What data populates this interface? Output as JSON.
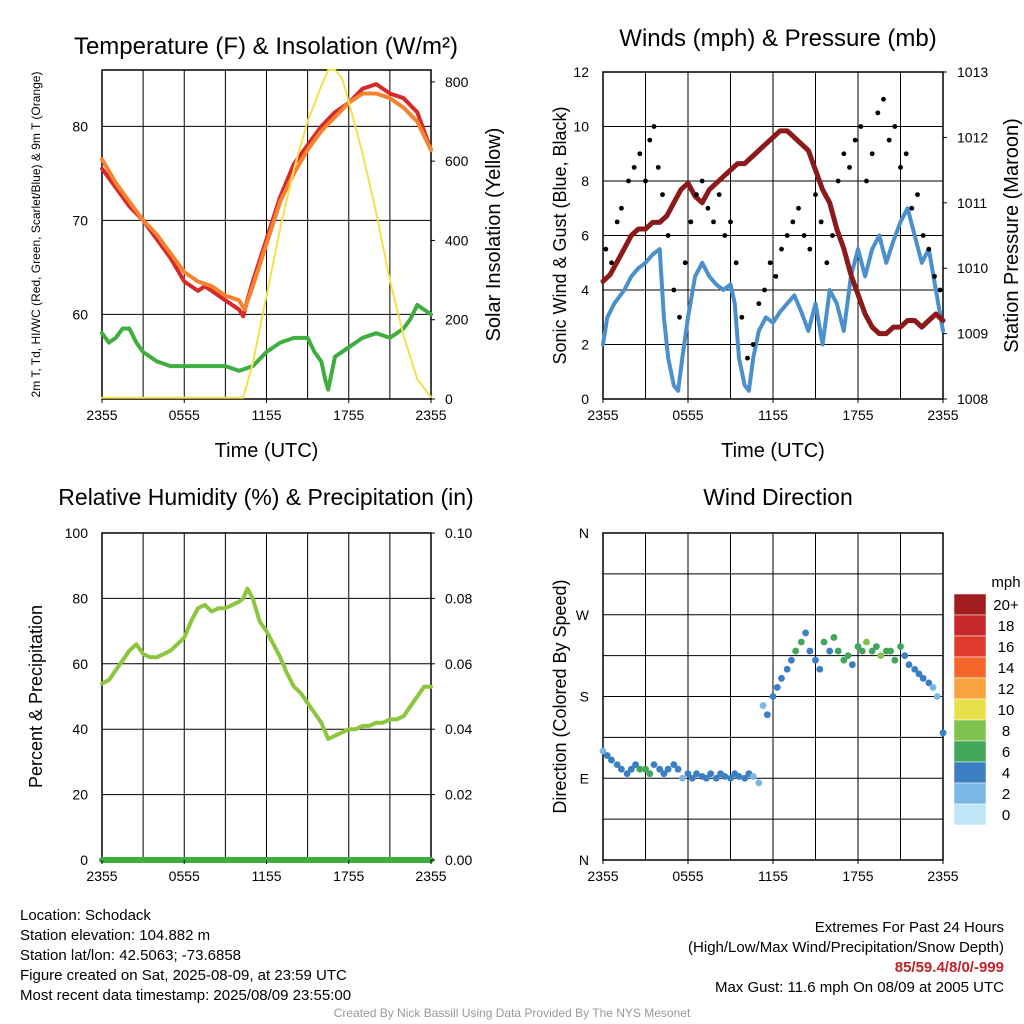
{
  "chart_data": [
    {
      "type": "line",
      "title": "Temperature (F) & Insolation (W/m²)",
      "xlabel": "Time (UTC)",
      "ylabel": "2m T, Td, HI/WC (Red, Green, Scarlet/Blue) & 9m T (Orange)",
      "ylabel_right": "Solar Insolation (Yellow)",
      "x_ticks": [
        "2355",
        "0555",
        "1155",
        "1755",
        "2355"
      ],
      "xlim": [
        0,
        24
      ],
      "ylim": [
        51,
        86
      ],
      "y_ticks": [
        60,
        70,
        80
      ],
      "ylim_right": [
        0,
        830
      ],
      "y_ticks_right": [
        0,
        200,
        400,
        600,
        800
      ],
      "grid": true,
      "series": [
        {
          "color": "#d7282a",
          "axis": "left",
          "x": [
            0,
            1,
            2,
            3,
            4,
            5,
            6,
            7,
            7.5,
            8,
            9,
            10,
            10.3,
            10.6,
            11,
            12,
            13,
            14,
            15,
            16,
            17,
            18,
            19,
            20,
            21,
            22,
            23,
            24
          ],
          "y": [
            75.5,
            73.5,
            71.5,
            70,
            68,
            66,
            63.5,
            62.5,
            63,
            62.5,
            61.5,
            60.5,
            59.8,
            61.5,
            63.5,
            68,
            72.5,
            76,
            78,
            80,
            81.5,
            82.5,
            84,
            84.5,
            83.5,
            83,
            81.5,
            77.5
          ]
        },
        {
          "color": "#f7832f",
          "axis": "left",
          "x": [
            0,
            1,
            2,
            3,
            4,
            5,
            6,
            7,
            8,
            9,
            10,
            10.4,
            11,
            12,
            13,
            14,
            15,
            16,
            17,
            18,
            19,
            20,
            21,
            22,
            23,
            24
          ],
          "y": [
            76.5,
            74,
            72,
            70,
            68.5,
            66.5,
            64.5,
            63.5,
            63,
            62,
            61.5,
            60.5,
            63,
            67.5,
            72,
            75,
            77.5,
            79.5,
            81,
            82.5,
            83.5,
            83.5,
            83,
            82,
            80.5,
            77.5
          ]
        },
        {
          "color": "#3fae3f",
          "axis": "left",
          "x": [
            0,
            0.5,
            1,
            1.5,
            2,
            2.5,
            3,
            3.5,
            4,
            5,
            6,
            7,
            8,
            9,
            10,
            11,
            12,
            13,
            14,
            15,
            15.5,
            16,
            16.3,
            16.5,
            17,
            18,
            19,
            20,
            21,
            22,
            22.5,
            23,
            24
          ],
          "y": [
            58,
            57,
            57.5,
            58.5,
            58.5,
            57,
            56,
            55.5,
            55,
            54.5,
            54.5,
            54.5,
            54.5,
            54.5,
            54,
            54.5,
            56,
            57,
            57.5,
            57.5,
            56,
            55,
            53,
            52,
            55.5,
            56.5,
            57.5,
            58,
            57.5,
            58.5,
            59.5,
            61,
            60
          ]
        },
        {
          "color": "#f6df4e",
          "axis": "right",
          "x": [
            0,
            9,
            10.3,
            11,
            12,
            13,
            14,
            15,
            16,
            16.5,
            17,
            17.5,
            18,
            19,
            20,
            21,
            22,
            23,
            24
          ],
          "y": [
            3,
            3,
            3,
            90,
            260,
            430,
            580,
            700,
            790,
            830,
            830,
            810,
            750,
            620,
            470,
            300,
            160,
            50,
            5
          ]
        }
      ]
    },
    {
      "type": "line",
      "title": "Winds (mph) & Pressure (mb)",
      "xlabel": "Time (UTC)",
      "ylabel": "Sonic Wind & Gust (Blue, Black)",
      "ylabel_right": "Station Pressure (Maroon)",
      "x_ticks": [
        "2355",
        "0555",
        "1155",
        "1755",
        "2355"
      ],
      "xlim": [
        0,
        24
      ],
      "ylim": [
        0,
        12
      ],
      "y_ticks": [
        0,
        2,
        4,
        6,
        8,
        10,
        12
      ],
      "ylim_right": [
        1008,
        1013
      ],
      "y_ticks_right": [
        1008,
        1009,
        1010,
        1011,
        1012,
        1013
      ],
      "grid": true,
      "series": [
        {
          "color": "#4a90cc",
          "axis": "left",
          "x": [
            0,
            0.3,
            0.8,
            1.5,
            2,
            2.5,
            3,
            3.5,
            4,
            4.3,
            4.6,
            5,
            5.3,
            5.6,
            6,
            6.5,
            7,
            7.5,
            8,
            8.5,
            9,
            9.3,
            9.6,
            10,
            10.3,
            10.6,
            11,
            11.5,
            12,
            12.5,
            13,
            13.5,
            14,
            14.5,
            15,
            15.5,
            16,
            16.5,
            17,
            17.5,
            18,
            18.5,
            19,
            19.5,
            20,
            20.5,
            21,
            21.5,
            22,
            22.5,
            23,
            23.5,
            24
          ],
          "y": [
            2,
            3,
            3.5,
            4,
            4.5,
            4.8,
            5,
            5.3,
            5.5,
            3,
            1.5,
            0.5,
            0.3,
            1.5,
            3,
            4.5,
            5,
            4.5,
            4.2,
            4,
            4.2,
            3.5,
            1.5,
            0.5,
            0.3,
            1.5,
            2.5,
            3,
            2.8,
            3.2,
            3.5,
            3.8,
            3.2,
            2.5,
            3.5,
            2,
            4,
            3.5,
            2.5,
            4.5,
            5.5,
            4.5,
            5.5,
            6,
            5,
            5.8,
            6.5,
            7,
            6,
            5,
            5.5,
            4,
            2.5
          ]
        },
        {
          "color": "#8b1a1a",
          "axis": "right",
          "x": [
            0,
            0.5,
            1,
            1.5,
            2,
            2.5,
            3,
            3.5,
            4,
            4.5,
            5,
            5.5,
            6,
            6.5,
            7,
            7.5,
            8,
            8.5,
            9,
            9.5,
            10,
            10.5,
            11,
            11.5,
            12,
            12.5,
            13,
            13.5,
            14,
            14.5,
            15,
            15.5,
            16,
            16.5,
            17,
            17.5,
            18,
            18.5,
            19,
            19.5,
            20,
            20.5,
            21,
            21.5,
            22,
            22.5,
            23,
            23.5,
            24
          ],
          "y": [
            1009.8,
            1009.9,
            1010.1,
            1010.3,
            1010.5,
            1010.6,
            1010.6,
            1010.7,
            1010.7,
            1010.8,
            1011,
            1011.2,
            1011.3,
            1011.1,
            1011,
            1011.2,
            1011.3,
            1011.4,
            1011.5,
            1011.6,
            1011.6,
            1011.7,
            1011.8,
            1011.9,
            1012,
            1012.1,
            1012.1,
            1012,
            1011.9,
            1011.8,
            1011.5,
            1011.2,
            1011,
            1010.6,
            1010.3,
            1009.9,
            1009.6,
            1009.3,
            1009.1,
            1009,
            1009,
            1009.1,
            1009.1,
            1009.2,
            1009.2,
            1009.1,
            1009.2,
            1009.3,
            1009.2
          ]
        },
        {
          "color": "#000000",
          "axis": "left",
          "style": "points",
          "x": [
            0.2,
            0.6,
            1,
            1.3,
            1.8,
            2.2,
            2.6,
            3,
            3.3,
            3.6,
            3.9,
            4.2,
            4.6,
            5,
            5.4,
            5.8,
            6.2,
            6.6,
            7,
            7.4,
            7.8,
            8.2,
            8.6,
            9,
            9.4,
            9.8,
            10.2,
            10.6,
            11,
            11.4,
            11.8,
            12.2,
            12.6,
            13,
            13.4,
            13.8,
            14.2,
            14.6,
            15,
            15.4,
            15.8,
            16.2,
            16.6,
            17,
            17.4,
            17.8,
            18.2,
            18.6,
            19,
            19.4,
            19.8,
            20.2,
            20.6,
            21,
            21.4,
            21.8,
            22.2,
            22.6,
            23,
            23.4,
            23.8
          ],
          "y": [
            5.5,
            5,
            6.5,
            7,
            8,
            8.5,
            9,
            8,
            9.5,
            10,
            8.5,
            7.5,
            6,
            4,
            3,
            5,
            6.5,
            7.5,
            8,
            7,
            6.5,
            7.5,
            6,
            6.5,
            5,
            3,
            1.5,
            2,
            3.5,
            4,
            5,
            4.5,
            5.5,
            6,
            6.5,
            7,
            6,
            5.5,
            7.5,
            6.5,
            5,
            6,
            8,
            9,
            8.5,
            9.5,
            10,
            8,
            9,
            10.5,
            11,
            9.5,
            10,
            8.5,
            9,
            7,
            7.5,
            6,
            5.5,
            4.5,
            4
          ]
        }
      ]
    },
    {
      "type": "line",
      "title": "Relative Humidity (%) & Precipitation (in)",
      "xlabel": "",
      "ylabel": "Percent & Precipitation",
      "x_ticks": [
        "2355",
        "0555",
        "1155",
        "1755",
        "2355"
      ],
      "xlim": [
        0,
        24
      ],
      "ylim": [
        0,
        100
      ],
      "y_ticks": [
        0,
        20,
        40,
        60,
        80,
        100
      ],
      "ylim_right": [
        0,
        0.1
      ],
      "y_ticks_right": [
        "0.00",
        "0.02",
        "0.04",
        "0.06",
        "0.08",
        "0.10"
      ],
      "grid": true,
      "series": [
        {
          "color": "#8cc63e",
          "axis": "left",
          "x": [
            0,
            0.5,
            1,
            1.5,
            2,
            2.5,
            3,
            3.5,
            4,
            4.5,
            5,
            5.5,
            6,
            6.5,
            7,
            7.5,
            8,
            8.5,
            9,
            9.5,
            10,
            10.3,
            10.6,
            11,
            11.5,
            12,
            12.5,
            13,
            13.5,
            14,
            14.5,
            15,
            15.5,
            16,
            16.5,
            17,
            17.5,
            18,
            18.5,
            19,
            19.5,
            20,
            20.5,
            21,
            21.5,
            22,
            22.5,
            23,
            23.5,
            24
          ],
          "y": [
            54,
            55,
            58,
            61,
            64,
            66,
            63,
            62,
            62,
            63,
            64,
            66,
            68,
            73,
            77,
            78,
            76,
            77,
            77,
            78,
            79,
            80,
            83,
            80,
            73,
            70,
            66,
            62,
            57,
            53,
            51,
            48,
            45,
            42,
            37,
            38,
            39,
            40,
            40,
            41,
            41,
            42,
            42,
            43,
            43,
            44,
            47,
            50,
            53,
            53
          ]
        },
        {
          "color": "#3fae3f",
          "axis": "right",
          "x": [
            0,
            24
          ],
          "y": [
            0,
            0
          ]
        }
      ]
    },
    {
      "type": "scatter",
      "title": "Wind Direction",
      "xlabel": "",
      "ylabel": "Direction (Colored By Speed)",
      "x_ticks": [
        "2355",
        "0555",
        "1155",
        "1755",
        "2355"
      ],
      "xlim": [
        0,
        24
      ],
      "y_ticks": [
        "N",
        "E",
        "S",
        "W",
        "N"
      ],
      "ylim": [
        0,
        360
      ],
      "grid": true,
      "legend": {
        "title": "mph",
        "labels": [
          "20+",
          "18",
          "16",
          "14",
          "12",
          "10",
          "8",
          "6",
          "4",
          "2",
          "0"
        ],
        "colors": [
          "#a01c1f",
          "#c6282b",
          "#e03c2e",
          "#f3682a",
          "#f9a340",
          "#e8e04b",
          "#7fc24d",
          "#3fa65a",
          "#3a7fc2",
          "#7bb7e5",
          "#bfe5f7"
        ],
        "placement": "right"
      },
      "series": [
        {
          "name": "",
          "x": [
            0,
            0.3,
            0.6,
            1,
            1.3,
            1.7,
            2,
            2.3,
            2.6,
            3,
            3.3,
            3.6,
            4,
            4.3,
            4.6,
            5,
            5.3,
            5.6,
            6,
            6.3,
            6.6,
            7,
            7.3,
            7.6,
            8,
            8.3,
            8.6,
            9,
            9.3,
            9.6,
            10,
            10.3,
            10.6,
            11,
            11.3,
            11.6,
            12,
            12.3,
            12.6,
            13,
            13.3,
            13.6,
            14,
            14.3,
            14.6,
            15,
            15.3,
            15.6,
            16,
            16.3,
            16.6,
            17,
            17.3,
            17.6,
            18,
            18.3,
            18.6,
            19,
            19.3,
            19.6,
            20,
            20.3,
            20.6,
            21,
            21.3,
            21.6,
            22,
            22.3,
            22.6,
            23,
            23.3,
            23.6,
            24
          ],
          "y": [
            120,
            115,
            110,
            105,
            100,
            95,
            100,
            105,
            100,
            100,
            95,
            105,
            100,
            95,
            100,
            105,
            100,
            90,
            95,
            90,
            95,
            92,
            90,
            95,
            90,
            95,
            92,
            90,
            95,
            92,
            90,
            95,
            92,
            85,
            170,
            160,
            180,
            190,
            200,
            210,
            220,
            230,
            240,
            250,
            230,
            220,
            210,
            240,
            230,
            245,
            230,
            220,
            225,
            215,
            235,
            230,
            240,
            230,
            235,
            225,
            230,
            230,
            220,
            235,
            225,
            215,
            210,
            205,
            200,
            195,
            190,
            180,
            140
          ],
          "speeds": [
            2,
            3,
            3,
            4,
            4,
            3,
            4,
            4,
            6,
            6,
            5,
            4,
            4,
            3,
            4,
            3,
            3,
            2,
            3,
            3,
            4,
            4,
            4,
            3,
            4,
            4,
            4,
            3,
            3,
            4,
            4,
            3,
            2,
            1,
            1,
            3,
            4,
            4,
            3,
            3,
            4,
            5,
            5,
            4,
            4,
            3,
            4,
            5,
            4,
            6,
            6,
            6,
            5,
            4,
            6,
            6,
            7,
            6,
            6,
            7,
            6,
            5,
            5,
            5,
            4,
            4,
            4,
            3,
            3,
            3,
            2,
            2,
            3
          ]
        }
      ]
    }
  ],
  "footer": {
    "location": "Location: Schodack",
    "elevation": "Station elevation: 104.882 m",
    "latlon": "Station lat/lon: 42.5063; -73.6858",
    "created": "Figure created on Sat, 2025-08-09, at 23:59 UTC",
    "recent": "Most recent data timestamp: 2025/08/09 23:55:00",
    "extremes_title": "Extremes For Past 24 Hours",
    "extremes_sub": "(High/Low/Max Wind/Precipitation/Snow Depth)",
    "extremes_values": "85/59.4/8/0/-999",
    "max_gust": "Max Gust: 11.6 mph On 08/09 at 2005 UTC",
    "credit": "Created By Nick Bassill Using Data Provided By The NYS Mesonet"
  }
}
